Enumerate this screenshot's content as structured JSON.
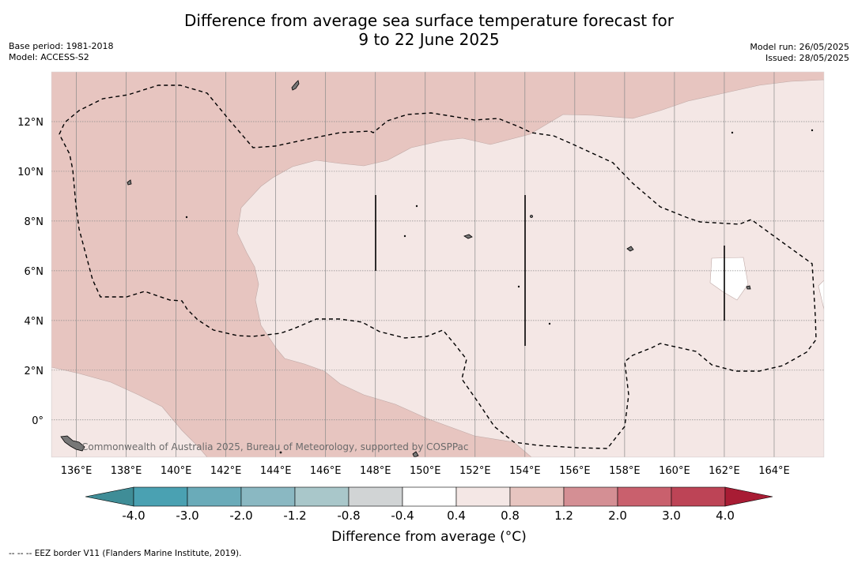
{
  "header": {
    "title_line1": "Difference from average sea surface temperature forecast for",
    "title_line2": "9 to 22 June 2025",
    "base_period": "Base period: 1981-2018",
    "model": "Model: ACCESS-S2",
    "model_run": "Model run: 26/05/2025",
    "issued": "Issued: 28/05/2025"
  },
  "map": {
    "lon_range": [
      135,
      166
    ],
    "lat_range": [
      -1.5,
      14
    ],
    "lon_ticks": [
      "136°E",
      "138°E",
      "140°E",
      "142°E",
      "144°E",
      "146°E",
      "148°E",
      "150°E",
      "152°E",
      "154°E",
      "156°E",
      "158°E",
      "160°E",
      "162°E",
      "164°E"
    ],
    "lat_ticks": [
      "0°",
      "2°N",
      "4°N",
      "6°N",
      "8°N",
      "10°N",
      "12°N"
    ],
    "credit": "Commonwealth of Australia 2025, Bureau of Meteorology, supported by COSPPac",
    "region_colors": {
      "0.4 to 0.8": "#f4e7e5",
      "0.8 to 1.2": "#e7c5c0",
      "-0.4 to 0.4": "#ffffff"
    }
  },
  "colorbar": {
    "label": "Difference from average (°C)",
    "tick_labels": [
      "-4.0",
      "-3.0",
      "-2.0",
      "-1.2",
      "-0.8",
      "-0.4",
      "0.4",
      "0.8",
      "1.2",
      "2.0",
      "3.0",
      "4.0"
    ],
    "colors": [
      "#3f8d97",
      "#4aa1b2",
      "#6aabb9",
      "#8ab8c2",
      "#a9c7ca",
      "#d1d4d5",
      "#ffffff",
      "#f4e7e5",
      "#e7c5c0",
      "#d48f94",
      "#c9606d",
      "#bd4456",
      "#a81c34"
    ]
  },
  "footer": {
    "legend": "--  --  -- EEZ border V11 (Flanders Marine Institute, 2019)."
  }
}
